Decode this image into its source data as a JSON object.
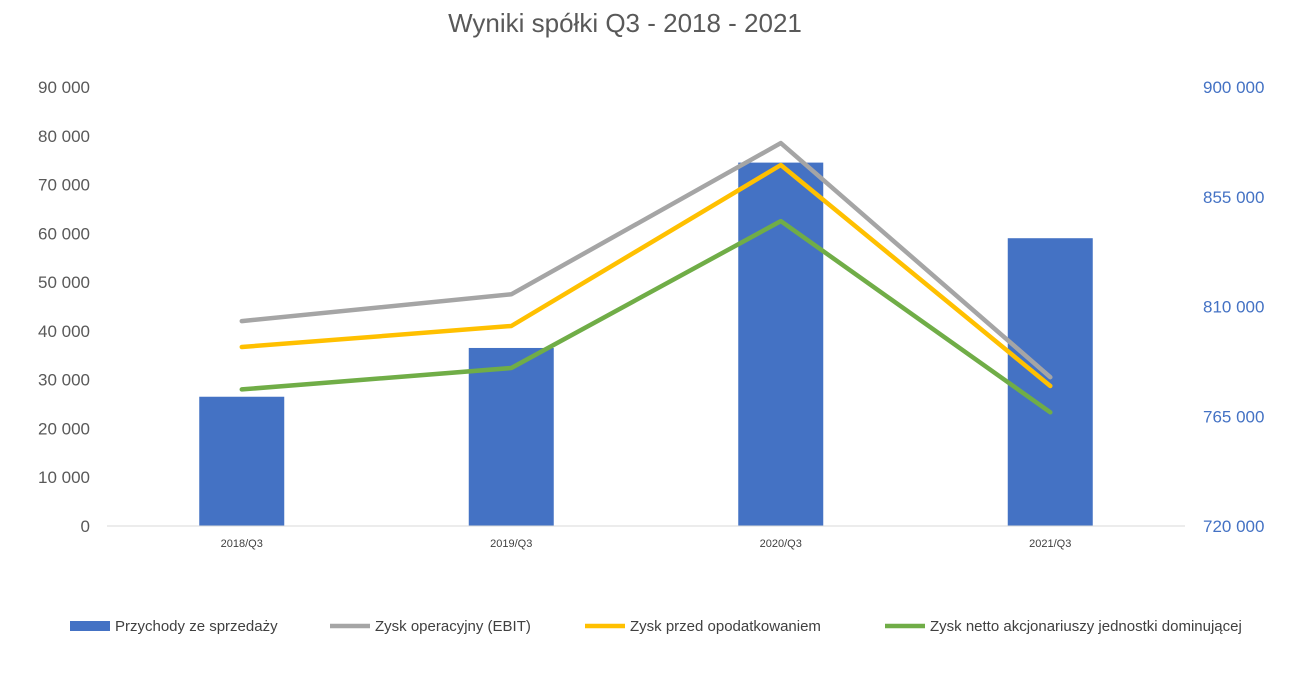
{
  "chart_data": {
    "type": "bar",
    "title": "Wyniki spółki Q3 - 2018 - 2021",
    "categories": [
      "2018/Q3",
      "2019/Q3",
      "2020/Q3",
      "2021/Q3"
    ],
    "y_left": {
      "range": [
        0,
        90000
      ],
      "ticks": [
        "0",
        "10 000",
        "20 000",
        "30 000",
        "40 000",
        "50 000",
        "60 000",
        "70 000",
        "80 000",
        "90 000"
      ]
    },
    "y_right": {
      "range": [
        720000,
        900000
      ],
      "ticks": [
        "720 000",
        "765 000",
        "810 000",
        "855 000",
        "900 000"
      ]
    },
    "series": [
      {
        "name": "Przychody ze sprzedaży",
        "type": "bar",
        "axis": "right",
        "color": "#4472C4",
        "values": [
          773000,
          793000,
          869000,
          838000
        ]
      },
      {
        "name": "Zysk operacyjny (EBIT)",
        "type": "line",
        "axis": "left",
        "color": "#A5A5A5",
        "values": [
          42000,
          47500,
          78500,
          30500
        ]
      },
      {
        "name": "Zysk przed opodatkowaniem",
        "type": "line",
        "axis": "left",
        "color": "#FFC000",
        "values": [
          36700,
          41000,
          74000,
          28700
        ]
      },
      {
        "name": "Zysk netto akcjonariuszy jednostki dominującej",
        "type": "line",
        "axis": "left",
        "color": "#70AD47",
        "values": [
          28000,
          32400,
          62500,
          23300
        ]
      }
    ],
    "grid": false,
    "legend_position": "bottom"
  }
}
